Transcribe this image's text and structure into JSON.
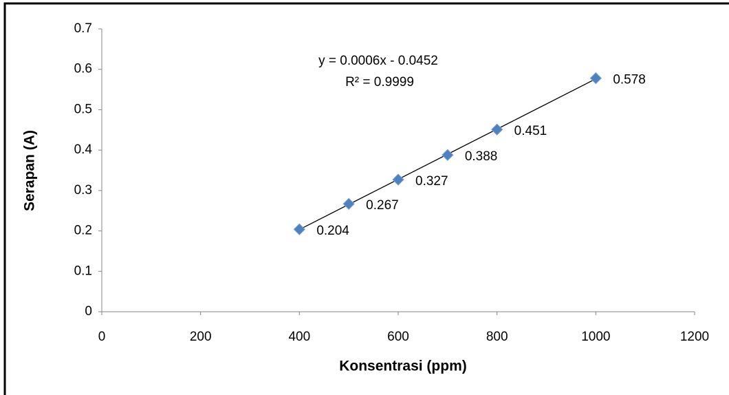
{
  "chart_data": {
    "type": "scatter",
    "x_label": "Konsentrasi (ppm)",
    "y_label": "Serapan (A)",
    "trendline_equation": "y = 0.0006x - 0.0452",
    "trendline_r2": "R² = 0.9999",
    "x": [
      400,
      500,
      600,
      700,
      800,
      1000
    ],
    "values": [
      0.204,
      0.267,
      0.327,
      0.388,
      0.451,
      0.578
    ],
    "color": "#4f81bd",
    "xlim": [
      0,
      1200
    ],
    "xticks": [
      0,
      200,
      400,
      600,
      800,
      1000,
      1200
    ],
    "ylim": [
      0,
      0.7
    ],
    "yticks": [
      0,
      0.1,
      0.2,
      0.3,
      0.4,
      0.5,
      0.6,
      0.7
    ],
    "grid": false
  }
}
